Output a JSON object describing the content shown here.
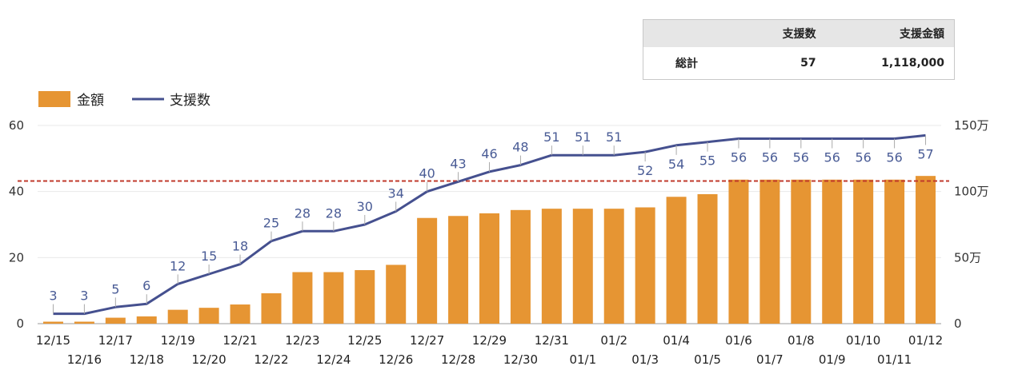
{
  "summary": {
    "headers": [
      "",
      "支援数",
      "支援金額"
    ],
    "rows": [
      {
        "label": "総計",
        "count": "57",
        "amount": "1,118,000"
      }
    ]
  },
  "colors": {
    "bar": "#e69533",
    "line": "#45508f",
    "label": "#4a5c96",
    "reference": "#c0392b",
    "grid": "#e8e8e8"
  },
  "chart_data": {
    "type": "bar+line",
    "legend": [
      {
        "name": "金額",
        "kind": "bar"
      },
      {
        "name": "支援数",
        "kind": "line"
      }
    ],
    "legend_position": "top-left",
    "categories": [
      "12/15",
      "12/16",
      "12/17",
      "12/18",
      "12/19",
      "12/20",
      "12/21",
      "12/22",
      "12/23",
      "12/24",
      "12/25",
      "12/26",
      "12/27",
      "12/28",
      "12/29",
      "12/30",
      "12/31",
      "01/1",
      "01/2",
      "01/3",
      "01/4",
      "01/5",
      "01/6",
      "01/7",
      "01/8",
      "01/9",
      "01/10",
      "01/11",
      "01/12"
    ],
    "series": [
      {
        "name": "金額",
        "type": "bar",
        "axis": "right",
        "values": [
          15000,
          15000,
          45000,
          55000,
          105000,
          120000,
          145000,
          230000,
          390000,
          390000,
          405000,
          445000,
          800000,
          815000,
          835000,
          860000,
          870000,
          870000,
          870000,
          880000,
          960000,
          980000,
          1090000,
          1090000,
          1090000,
          1090000,
          1090000,
          1090000,
          1118000
        ]
      },
      {
        "name": "支援数",
        "type": "line",
        "axis": "left",
        "values": [
          3,
          3,
          5,
          6,
          12,
          15,
          18,
          25,
          28,
          28,
          30,
          34,
          40,
          43,
          46,
          48,
          51,
          51,
          51,
          52,
          54,
          55,
          56,
          56,
          56,
          56,
          56,
          56,
          57
        ]
      }
    ],
    "y_left": {
      "range": [
        0,
        60
      ],
      "ticks": [
        "0",
        "20",
        "40",
        "60"
      ]
    },
    "y_right": {
      "range": [
        0,
        1500000
      ],
      "ticks": [
        "0",
        "50万",
        "100万",
        "150万"
      ]
    },
    "reference_line": {
      "axis": "right",
      "value": 1080000,
      "style": "dashed"
    },
    "grid": true
  }
}
